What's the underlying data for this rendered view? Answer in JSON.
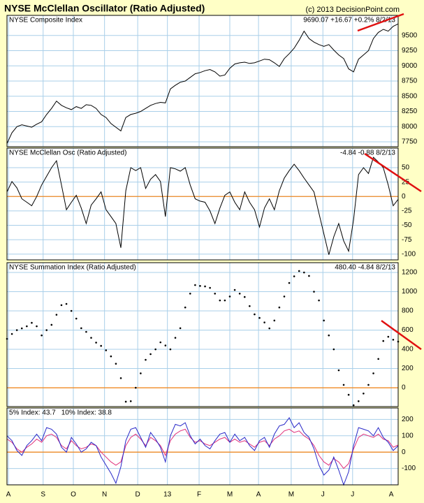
{
  "title": "NYSE McClellan Oscillator (Ratio Adjusted)",
  "credit": "(c) 2013 DecisionPoint.com",
  "chart_data": [
    {
      "type": "line",
      "title": "NYSE Composite Index",
      "readout": "9690.07 +16.67 +0.2% 8/2/13",
      "color": "#000000",
      "values": [
        7720,
        7900,
        8000,
        8030,
        8010,
        7990,
        8040,
        8080,
        8200,
        8300,
        8420,
        8350,
        8310,
        8280,
        8330,
        8300,
        8360,
        8350,
        8300,
        8200,
        8150,
        8050,
        7990,
        7930,
        8150,
        8200,
        8220,
        8250,
        8300,
        8350,
        8380,
        8400,
        8390,
        8620,
        8680,
        8730,
        8750,
        8810,
        8870,
        8890,
        8920,
        8940,
        8900,
        8830,
        8850,
        8960,
        9030,
        9050,
        9060,
        9040,
        9050,
        9080,
        9110,
        9100,
        9050,
        8990,
        9120,
        9200,
        9290,
        9420,
        9570,
        9450,
        9390,
        9350,
        9320,
        9350,
        9260,
        9180,
        9120,
        8950,
        8900,
        9110,
        9180,
        9250,
        9450,
        9550,
        9600,
        9570,
        9650,
        9690.07
      ],
      "xlim": [
        0,
        79
      ],
      "ylim": [
        7670,
        9830
      ],
      "yticks": [
        7750,
        8000,
        8250,
        8500,
        8750,
        9000,
        9250,
        9500
      ],
      "grid": true
    },
    {
      "type": "line",
      "title": "NYSE McClellan Osc (Ratio Adjusted)",
      "readout": "-4.84 -0.88 8/2/13",
      "color": "#000000",
      "values": [
        8,
        26,
        15,
        -4,
        -10,
        -16,
        0,
        20,
        35,
        50,
        62,
        20,
        -23,
        -10,
        2,
        -20,
        -47,
        -15,
        -4,
        8,
        -23,
        -35,
        -47,
        -89,
        10,
        50,
        45,
        50,
        14,
        30,
        38,
        26,
        -35,
        50,
        48,
        44,
        50,
        20,
        -4,
        -8,
        -10,
        -25,
        -47,
        -20,
        2,
        8,
        -10,
        -23,
        8,
        -10,
        -23,
        -53,
        -20,
        -4,
        -23,
        10,
        32,
        45,
        56,
        45,
        32,
        20,
        8,
        -29,
        -65,
        -101,
        -70,
        -47,
        -77,
        -95,
        -40,
        38,
        50,
        40,
        68,
        60,
        50,
        20,
        -16,
        -4.84
      ],
      "xlim": [
        0,
        79
      ],
      "ylim": [
        -110,
        84
      ],
      "yticks": [
        -100,
        -75,
        -50,
        -25,
        0,
        25,
        50
      ],
      "zero_line": 0,
      "grid": true
    },
    {
      "type": "dot",
      "title": "NYSE Summation Index (Ratio Adjusted)",
      "readout": "480.40 -4.84 8/2/13",
      "color": "#000000",
      "values": [
        509,
        560,
        600,
        618,
        640,
        676,
        640,
        545,
        600,
        655,
        760,
        860,
        873,
        800,
        720,
        620,
        582,
        520,
        470,
        436,
        390,
        327,
        250,
        100,
        -145,
        -140,
        0,
        150,
        291,
        350,
        400,
        473,
        440,
        400,
        520,
        620,
        836,
        980,
        1069,
        1060,
        1055,
        1040,
        980,
        909,
        909,
        950,
        1018,
        980,
        945,
        850,
        764,
        727,
        680,
        618,
        700,
        836,
        950,
        1091,
        1160,
        1215,
        1200,
        1164,
        1000,
        909,
        700,
        545,
        400,
        182,
        30,
        -73,
        -182,
        -140,
        -60,
        30,
        150,
        300,
        487,
        531,
        500,
        480.4
      ],
      "xlim": [
        0,
        79
      ],
      "ylim": [
        -196,
        1302
      ],
      "yticks": [
        0,
        200,
        400,
        600,
        800,
        1000,
        1200
      ],
      "zero_line": 0,
      "grid": true
    },
    {
      "type": "line",
      "xlim": [
        0,
        79
      ],
      "ylim": [
        -200,
        270
      ],
      "yticks": [
        -100,
        0,
        100,
        200
      ],
      "zero_line": 0,
      "grid": true,
      "series": [
        {
          "name": "5% Index: 43.7",
          "color": "#e0307a",
          "values": [
            80,
            60,
            20,
            0,
            30,
            50,
            80,
            60,
            100,
            110,
            90,
            40,
            20,
            70,
            40,
            20,
            30,
            50,
            40,
            0,
            -30,
            -60,
            -80,
            -60,
            40,
            90,
            110,
            80,
            40,
            90,
            70,
            40,
            -20,
            70,
            110,
            130,
            140,
            90,
            60,
            70,
            50,
            40,
            60,
            80,
            90,
            60,
            80,
            60,
            70,
            50,
            30,
            60,
            70,
            40,
            80,
            100,
            130,
            140,
            120,
            130,
            100,
            80,
            40,
            -20,
            -60,
            -80,
            -40,
            -60,
            -100,
            -70,
            20,
            90,
            110,
            100,
            90,
            110,
            80,
            70,
            30,
            43.7
          ]
        },
        {
          "name": "10% Index: 38.8",
          "color": "#2828c8",
          "values": [
            100,
            70,
            10,
            -20,
            40,
            70,
            110,
            70,
            150,
            140,
            110,
            30,
            0,
            90,
            50,
            0,
            20,
            60,
            40,
            -30,
            -80,
            -130,
            -190,
            -90,
            70,
            140,
            150,
            90,
            30,
            120,
            80,
            30,
            -60,
            100,
            170,
            160,
            180,
            100,
            50,
            80,
            40,
            20,
            70,
            110,
            120,
            60,
            110,
            70,
            90,
            40,
            10,
            70,
            90,
            30,
            110,
            160,
            170,
            210,
            150,
            180,
            120,
            90,
            20,
            -80,
            -140,
            -110,
            -30,
            -110,
            -200,
            -120,
            40,
            150,
            140,
            130,
            100,
            150,
            90,
            60,
            10,
            38.8
          ]
        }
      ],
      "xticks": [
        {
          "value": 0.3,
          "label": "A"
        },
        {
          "value": 7.3,
          "label": "S"
        },
        {
          "value": 13.4,
          "label": "O"
        },
        {
          "value": 19.7,
          "label": "N"
        },
        {
          "value": 26.4,
          "label": "D"
        },
        {
          "value": 32.4,
          "label": "13"
        },
        {
          "value": 38.8,
          "label": "F"
        },
        {
          "value": 45,
          "label": "M"
        },
        {
          "value": 50.8,
          "label": "A"
        },
        {
          "value": 57.4,
          "label": "M"
        },
        {
          "value": 63.8,
          "label": "J"
        },
        {
          "value": 69.8,
          "label": "J"
        },
        {
          "value": 77.6,
          "label": "A"
        }
      ]
    }
  ]
}
